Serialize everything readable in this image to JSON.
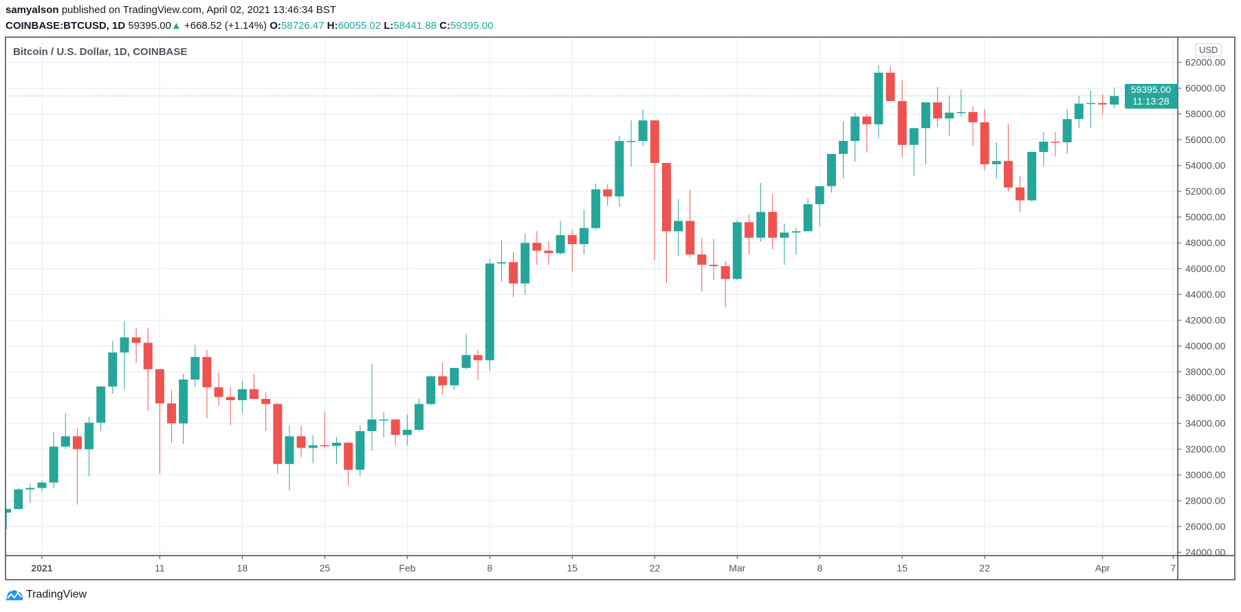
{
  "header": {
    "author": "samyalson",
    "published": " published on TradingView.com, April 02, 2021 13:46:34 BST",
    "symbol": "COINBASE:BTCUSD, 1D",
    "last": "59395.00",
    "change_icon": "triangle-up-icon",
    "change": "+668.52 (+1.14%)",
    "o_label": "O:",
    "o": "58726.47",
    "h_label": "H:",
    "h": "60055.02",
    "l_label": "L:",
    "l": "58441.88",
    "c_label": "C:",
    "c": "59395.00"
  },
  "chart_data": {
    "type": "candlestick",
    "title": "Bitcoin / U.S. Dollar, 1D, COINBASE",
    "currency": "USD",
    "last_price_label": "59395.00",
    "countdown_label": "11:13:28",
    "ylim": [
      23000,
      63000
    ],
    "y_ticks": [
      "24000.00",
      "26000.00",
      "28000.00",
      "30000.00",
      "32000.00",
      "34000.00",
      "36000.00",
      "38000.00",
      "40000.00",
      "42000.00",
      "44000.00",
      "46000.00",
      "48000.00",
      "50000.00",
      "52000.00",
      "54000.00",
      "56000.00",
      "58000.00",
      "60000.00",
      "62000.00"
    ],
    "x_ticks": [
      {
        "date": "2021-01-01",
        "label": "2021"
      },
      {
        "date": "2021-01-11",
        "label": "11"
      },
      {
        "date": "2021-01-18",
        "label": "18"
      },
      {
        "date": "2021-01-25",
        "label": "25"
      },
      {
        "date": "2021-02-01",
        "label": "Feb"
      },
      {
        "date": "2021-02-08",
        "label": "8"
      },
      {
        "date": "2021-02-15",
        "label": "15"
      },
      {
        "date": "2021-02-22",
        "label": "22"
      },
      {
        "date": "2021-03-01",
        "label": "Mar"
      },
      {
        "date": "2021-03-08",
        "label": "8"
      },
      {
        "date": "2021-03-15",
        "label": "15"
      },
      {
        "date": "2021-03-22",
        "label": "22"
      },
      {
        "date": "2021-04-01",
        "label": "Apr"
      },
      {
        "date": "2021-04-07",
        "label": "7"
      }
    ],
    "grid": true,
    "up_color": "#26a69a",
    "down_color": "#ef5350",
    "columns": [
      "date",
      "open",
      "high",
      "low",
      "close"
    ],
    "candles": [
      [
        "2020-12-29",
        27080,
        27370,
        25800,
        27360
      ],
      [
        "2020-12-30",
        27360,
        28990,
        27320,
        28880
      ],
      [
        "2020-12-31",
        28880,
        29300,
        27850,
        28990
      ],
      [
        "2021-01-01",
        28990,
        29600,
        28700,
        29410
      ],
      [
        "2021-01-02",
        29410,
        33300,
        28950,
        32200
      ],
      [
        "2021-01-03",
        32200,
        34800,
        32000,
        33000
      ],
      [
        "2021-01-04",
        33000,
        33600,
        27700,
        32000
      ],
      [
        "2021-01-05",
        32000,
        34500,
        29900,
        34050
      ],
      [
        "2021-01-06",
        34050,
        36900,
        33400,
        36860
      ],
      [
        "2021-01-07",
        36860,
        40400,
        36300,
        39500
      ],
      [
        "2021-01-08",
        39500,
        41950,
        36600,
        40670
      ],
      [
        "2021-01-09",
        40670,
        41400,
        38700,
        40250
      ],
      [
        "2021-01-10",
        40250,
        41400,
        35000,
        38200
      ],
      [
        "2021-01-11",
        38200,
        38200,
        30100,
        35550
      ],
      [
        "2021-01-12",
        35550,
        36600,
        32500,
        34000
      ],
      [
        "2021-01-13",
        34000,
        37850,
        32400,
        37400
      ],
      [
        "2021-01-14",
        37400,
        40100,
        36800,
        39150
      ],
      [
        "2021-01-15",
        39150,
        39700,
        34400,
        36800
      ],
      [
        "2021-01-16",
        36800,
        37950,
        35400,
        36050
      ],
      [
        "2021-01-17",
        36050,
        36850,
        33850,
        35800
      ],
      [
        "2021-01-18",
        35800,
        37300,
        34800,
        36650
      ],
      [
        "2021-01-19",
        36650,
        37850,
        35900,
        35900
      ],
      [
        "2021-01-20",
        35900,
        36400,
        33400,
        35500
      ],
      [
        "2021-01-21",
        35500,
        35600,
        30100,
        30850
      ],
      [
        "2021-01-22",
        30850,
        33850,
        28800,
        33000
      ],
      [
        "2021-01-23",
        33000,
        33800,
        31400,
        32100
      ],
      [
        "2021-01-24",
        32100,
        33100,
        30900,
        32300
      ],
      [
        "2021-01-25",
        32300,
        34900,
        32100,
        32250
      ],
      [
        "2021-01-26",
        32250,
        32950,
        30850,
        32500
      ],
      [
        "2021-01-27",
        32500,
        32560,
        29200,
        30400
      ],
      [
        "2021-01-28",
        30400,
        33800,
        29900,
        33400
      ],
      [
        "2021-01-29",
        33400,
        38600,
        31900,
        34300
      ],
      [
        "2021-01-30",
        34300,
        34900,
        32900,
        34300
      ],
      [
        "2021-01-31",
        34300,
        34300,
        32300,
        33100
      ],
      [
        "2021-02-01",
        33100,
        34700,
        32300,
        33500
      ],
      [
        "2021-02-02",
        33500,
        35900,
        33400,
        35500
      ],
      [
        "2021-02-03",
        35500,
        37700,
        35400,
        37650
      ],
      [
        "2021-02-04",
        37650,
        38700,
        36200,
        36950
      ],
      [
        "2021-02-05",
        36950,
        38300,
        36600,
        38300
      ],
      [
        "2021-02-06",
        38300,
        40950,
        38200,
        39300
      ],
      [
        "2021-02-07",
        39300,
        39700,
        37400,
        38900
      ],
      [
        "2021-02-08",
        38900,
        46750,
        38100,
        46400
      ],
      [
        "2021-02-09",
        46400,
        48200,
        45000,
        46500
      ],
      [
        "2021-02-10",
        46500,
        47300,
        43800,
        44850
      ],
      [
        "2021-02-11",
        44850,
        48700,
        44000,
        48000
      ],
      [
        "2021-02-12",
        48000,
        48900,
        46300,
        47400
      ],
      [
        "2021-02-13",
        47400,
        48100,
        46300,
        47200
      ],
      [
        "2021-02-14",
        47200,
        49700,
        47100,
        48600
      ],
      [
        "2021-02-15",
        48600,
        49000,
        45800,
        47900
      ],
      [
        "2021-02-16",
        47900,
        50600,
        47100,
        49150
      ],
      [
        "2021-02-17",
        49150,
        52600,
        49000,
        52150
      ],
      [
        "2021-02-18",
        52150,
        52550,
        50900,
        51600
      ],
      [
        "2021-02-19",
        51600,
        56300,
        50800,
        55900
      ],
      [
        "2021-02-20",
        55900,
        57500,
        53900,
        55900
      ],
      [
        "2021-02-21",
        55900,
        58350,
        55500,
        57500
      ],
      [
        "2021-02-22",
        57500,
        57500,
        46700,
        54200
      ],
      [
        "2021-02-23",
        54200,
        54200,
        44900,
        48900
      ],
      [
        "2021-02-24",
        48900,
        51400,
        47000,
        49700
      ],
      [
        "2021-02-25",
        49700,
        52100,
        46900,
        47100
      ],
      [
        "2021-02-26",
        47100,
        48400,
        44200,
        46300
      ],
      [
        "2021-02-27",
        46300,
        48300,
        45100,
        46200
      ],
      [
        "2021-02-28",
        46200,
        46600,
        43000,
        45200
      ],
      [
        "2021-03-01",
        45200,
        49800,
        45100,
        49600
      ],
      [
        "2021-03-02",
        49600,
        50200,
        47100,
        48400
      ],
      [
        "2021-03-03",
        48400,
        52650,
        48100,
        50400
      ],
      [
        "2021-03-04",
        50400,
        51800,
        47500,
        48400
      ],
      [
        "2021-03-05",
        48400,
        49500,
        46300,
        48800
      ],
      [
        "2021-03-06",
        48800,
        49200,
        47100,
        48900
      ],
      [
        "2021-03-07",
        48900,
        51450,
        48900,
        51000
      ],
      [
        "2021-03-08",
        51000,
        52400,
        49300,
        52400
      ],
      [
        "2021-03-09",
        52400,
        54900,
        51900,
        54900
      ],
      [
        "2021-03-10",
        54900,
        57400,
        53000,
        55900
      ],
      [
        "2021-03-11",
        55900,
        58100,
        54300,
        57800
      ],
      [
        "2021-03-12",
        57800,
        58000,
        55000,
        57200
      ],
      [
        "2021-03-13",
        57200,
        61800,
        56100,
        61200
      ],
      [
        "2021-03-14",
        61200,
        61700,
        59000,
        59000
      ],
      [
        "2021-03-15",
        59000,
        60600,
        54600,
        55600
      ],
      [
        "2021-03-16",
        55600,
        56900,
        53200,
        56900
      ],
      [
        "2021-03-17",
        56900,
        58900,
        54100,
        58900
      ],
      [
        "2021-03-18",
        58900,
        60100,
        57000,
        57650
      ],
      [
        "2021-03-19",
        57650,
        59450,
        56300,
        58100
      ],
      [
        "2021-03-20",
        58100,
        59900,
        57800,
        58150
      ],
      [
        "2021-03-21",
        58150,
        58600,
        55500,
        57350
      ],
      [
        "2021-03-22",
        57350,
        58400,
        53650,
        54100
      ],
      [
        "2021-03-23",
        54100,
        55800,
        53000,
        54350
      ],
      [
        "2021-03-24",
        54350,
        57200,
        52000,
        52300
      ],
      [
        "2021-03-25",
        52300,
        53200,
        50400,
        51300
      ],
      [
        "2021-03-26",
        51300,
        55100,
        51200,
        55050
      ],
      [
        "2021-03-27",
        55050,
        56600,
        53950,
        55850
      ],
      [
        "2021-03-28",
        55850,
        56600,
        54700,
        55800
      ],
      [
        "2021-03-29",
        55800,
        58400,
        54900,
        57600
      ],
      [
        "2021-03-30",
        57600,
        59400,
        56900,
        58800
      ],
      [
        "2021-03-31",
        58800,
        59800,
        56900,
        58850
      ],
      [
        "2021-04-01",
        58850,
        59500,
        57950,
        58726.47
      ],
      [
        "2021-04-02",
        58726.47,
        60055.02,
        58441.88,
        59395.0
      ]
    ]
  },
  "footer": {
    "logo_icon": "tradingview-logo-icon",
    "brand": "TradingView"
  }
}
